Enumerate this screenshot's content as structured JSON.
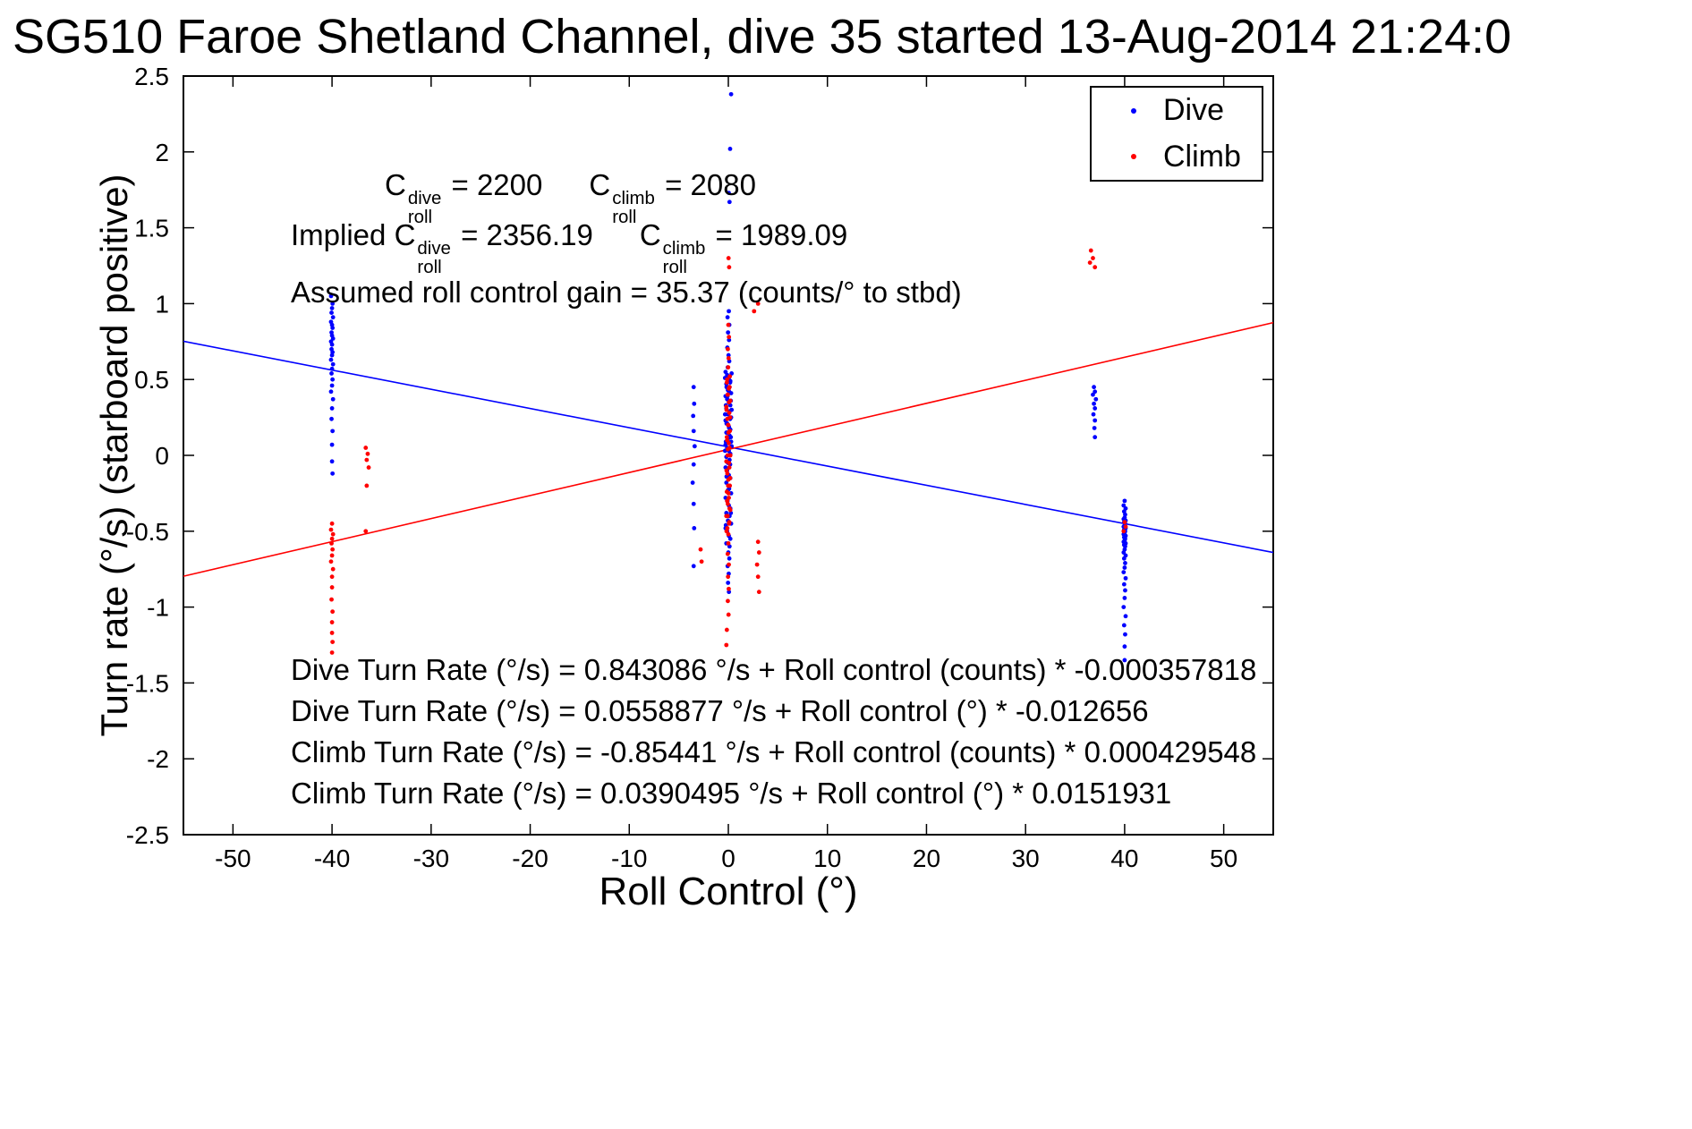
{
  "chart_data": {
    "type": "scatter",
    "title": "SG510 Faroe Shetland Channel, dive 35 started 13-Aug-2014 21:24:0",
    "xlabel": "Roll Control (°)",
    "ylabel": "Turn rate (°/s) (starboard positive)",
    "xlim": [
      -55,
      55
    ],
    "ylim": [
      -2.5,
      2.5
    ],
    "xticks": [
      -50,
      -40,
      -30,
      -20,
      -10,
      0,
      10,
      20,
      30,
      40,
      50
    ],
    "yticks": [
      -2.5,
      -2,
      -1.5,
      -1,
      -0.5,
      0,
      0.5,
      1,
      1.5,
      2,
      2.5
    ],
    "grid": false,
    "legend_position": "top-right",
    "fit_lines": [
      {
        "name": "dive-fit",
        "color": "#0000ff",
        "intercept": 0.0558877,
        "slope": -0.012656
      },
      {
        "name": "climb-fit",
        "color": "#ff0000",
        "intercept": 0.0390495,
        "slope": 0.0151931
      }
    ],
    "series": [
      {
        "name": "Dive",
        "color": "#0000ff",
        "marker": "point",
        "points": [
          [
            -40.1,
            1.05
          ],
          [
            -39.95,
            1.0
          ],
          [
            -40.0,
            0.97
          ],
          [
            -40.05,
            0.94
          ],
          [
            -39.9,
            0.91
          ],
          [
            -40.1,
            0.88
          ],
          [
            -40.0,
            0.86
          ],
          [
            -39.95,
            0.84
          ],
          [
            -40.05,
            0.81
          ],
          [
            -40.0,
            0.79
          ],
          [
            -39.9,
            0.77
          ],
          [
            -40.1,
            0.75
          ],
          [
            -40.0,
            0.73
          ],
          [
            -40.05,
            0.7
          ],
          [
            -39.95,
            0.68
          ],
          [
            -40.0,
            0.66
          ],
          [
            -40.1,
            0.63
          ],
          [
            -39.9,
            0.6
          ],
          [
            -40.0,
            0.57
          ],
          [
            -40.05,
            0.54
          ],
          [
            -39.95,
            0.5
          ],
          [
            -40.0,
            0.46
          ],
          [
            -40.1,
            0.42
          ],
          [
            -39.9,
            0.37
          ],
          [
            -40.0,
            0.31
          ],
          [
            -40.05,
            0.24
          ],
          [
            -39.95,
            0.16
          ],
          [
            -40.0,
            0.07
          ],
          [
            -40.0,
            -0.04
          ],
          [
            -39.95,
            -0.12
          ],
          [
            -3.5,
            0.45
          ],
          [
            -3.45,
            0.34
          ],
          [
            -3.55,
            0.26
          ],
          [
            -3.5,
            0.16
          ],
          [
            -3.4,
            0.06
          ],
          [
            -3.5,
            -0.06
          ],
          [
            -3.6,
            -0.18
          ],
          [
            -3.5,
            -0.32
          ],
          [
            -3.45,
            -0.48
          ],
          [
            -3.5,
            -0.73
          ],
          [
            0.28,
            2.38
          ],
          [
            0.18,
            2.02
          ],
          [
            0.04,
            1.73
          ],
          [
            0.12,
            1.67
          ],
          [
            0.05,
            0.95
          ],
          [
            -0.08,
            0.91
          ],
          [
            0.1,
            0.86
          ],
          [
            -0.03,
            0.81
          ],
          [
            0.07,
            0.76
          ],
          [
            -0.1,
            0.71
          ],
          [
            0.02,
            0.66
          ],
          [
            0.09,
            0.62
          ],
          [
            -0.06,
            0.58
          ],
          [
            -0.28,
            0.55
          ],
          [
            -0.12,
            0.53
          ],
          [
            0.05,
            0.51
          ],
          [
            0.2,
            0.49
          ],
          [
            -0.2,
            0.47
          ],
          [
            0.12,
            0.45
          ],
          [
            -0.04,
            0.43
          ],
          [
            0.28,
            0.41
          ],
          [
            -0.28,
            0.39
          ],
          [
            -0.12,
            0.37
          ],
          [
            0.05,
            0.35
          ],
          [
            0.2,
            0.33
          ],
          [
            -0.2,
            0.31
          ],
          [
            0.12,
            0.29
          ],
          [
            -0.04,
            0.27
          ],
          [
            0.28,
            0.25
          ],
          [
            -0.28,
            0.23
          ],
          [
            -0.12,
            0.21
          ],
          [
            0.05,
            0.19
          ],
          [
            0.2,
            0.17
          ],
          [
            -0.2,
            0.15
          ],
          [
            0.12,
            0.13
          ],
          [
            -0.04,
            0.11
          ],
          [
            0.28,
            0.09
          ],
          [
            -0.28,
            0.07
          ],
          [
            -0.12,
            0.05
          ],
          [
            0.05,
            0.03
          ],
          [
            0.2,
            0.01
          ],
          [
            -0.2,
            -0.01
          ],
          [
            0.12,
            -0.03
          ],
          [
            -0.04,
            -0.05
          ],
          [
            0.33,
            0.54
          ],
          [
            -0.33,
            0.51
          ],
          [
            0.18,
            0.48
          ],
          [
            -0.18,
            0.45
          ],
          [
            0.08,
            0.42
          ],
          [
            -0.08,
            0.39
          ],
          [
            0.25,
            0.36
          ],
          [
            -0.25,
            0.33
          ],
          [
            0.33,
            0.3
          ],
          [
            -0.33,
            0.27
          ],
          [
            0.18,
            0.24
          ],
          [
            -0.18,
            0.21
          ],
          [
            0.08,
            0.18
          ],
          [
            -0.08,
            0.15
          ],
          [
            0.25,
            0.12
          ],
          [
            -0.25,
            0.09
          ],
          [
            0.33,
            0.06
          ],
          [
            -0.33,
            0.03
          ],
          [
            0.18,
            0.0
          ],
          [
            -0.28,
            -0.08
          ],
          [
            -0.12,
            -0.1
          ],
          [
            0.05,
            -0.13
          ],
          [
            0.2,
            -0.15
          ],
          [
            -0.2,
            -0.18
          ],
          [
            0.12,
            -0.2
          ],
          [
            -0.04,
            -0.23
          ],
          [
            0.28,
            -0.25
          ],
          [
            -0.28,
            -0.28
          ],
          [
            -0.12,
            -0.3
          ],
          [
            0.05,
            -0.33
          ],
          [
            0.2,
            -0.35
          ],
          [
            -0.2,
            -0.38
          ],
          [
            0.12,
            -0.4
          ],
          [
            -0.04,
            -0.43
          ],
          [
            0.28,
            -0.45
          ],
          [
            -0.28,
            -0.48
          ],
          [
            -0.12,
            -0.5
          ],
          [
            0.05,
            -0.53
          ],
          [
            0.2,
            -0.55
          ],
          [
            -0.2,
            -0.58
          ],
          [
            0.12,
            -0.6
          ],
          [
            0.18,
            -0.06
          ],
          [
            -0.18,
            -0.14
          ],
          [
            0.08,
            -0.22
          ],
          [
            -0.08,
            -0.3
          ],
          [
            0.25,
            -0.38
          ],
          [
            -0.25,
            -0.46
          ],
          [
            0.0,
            -0.64
          ],
          [
            0.1,
            -0.68
          ],
          [
            -0.07,
            -0.73
          ],
          [
            0.04,
            -0.78
          ],
          [
            -0.03,
            -0.84
          ],
          [
            0.06,
            -0.9
          ],
          [
            36.9,
            0.45
          ],
          [
            37.0,
            0.42
          ],
          [
            36.8,
            0.4
          ],
          [
            37.1,
            0.37
          ],
          [
            36.9,
            0.34
          ],
          [
            37.0,
            0.31
          ],
          [
            36.85,
            0.27
          ],
          [
            37.0,
            0.23
          ],
          [
            36.95,
            0.18
          ],
          [
            37.0,
            0.12
          ],
          [
            40.0,
            -0.3
          ],
          [
            39.9,
            -0.33
          ],
          [
            40.1,
            -0.35
          ],
          [
            39.95,
            -0.37
          ],
          [
            40.05,
            -0.39
          ],
          [
            40.0,
            -0.41
          ],
          [
            39.9,
            -0.42
          ],
          [
            40.1,
            -0.43
          ],
          [
            39.95,
            -0.44
          ],
          [
            40.05,
            -0.45
          ],
          [
            40.0,
            -0.46
          ],
          [
            39.9,
            -0.47
          ],
          [
            40.1,
            -0.48
          ],
          [
            39.95,
            -0.49
          ],
          [
            40.05,
            -0.5
          ],
          [
            40.0,
            -0.51
          ],
          [
            39.9,
            -0.52
          ],
          [
            40.1,
            -0.53
          ],
          [
            39.95,
            -0.54
          ],
          [
            40.05,
            -0.55
          ],
          [
            40.0,
            -0.56
          ],
          [
            39.9,
            -0.57
          ],
          [
            40.1,
            -0.58
          ],
          [
            39.95,
            -0.59
          ],
          [
            40.05,
            -0.6
          ],
          [
            40.0,
            -0.62
          ],
          [
            39.9,
            -0.64
          ],
          [
            40.1,
            -0.66
          ],
          [
            39.95,
            -0.68
          ],
          [
            40.05,
            -0.71
          ],
          [
            40.0,
            -0.74
          ],
          [
            39.9,
            -0.77
          ],
          [
            40.1,
            -0.81
          ],
          [
            39.95,
            -0.85
          ],
          [
            40.05,
            -0.89
          ],
          [
            40.0,
            -0.94
          ],
          [
            39.9,
            -1.0
          ],
          [
            40.1,
            -1.06
          ],
          [
            39.95,
            -1.12
          ],
          [
            40.05,
            -1.18
          ],
          [
            40.0,
            -1.26
          ],
          [
            40.0,
            -1.35
          ]
        ]
      },
      {
        "name": "Climb",
        "color": "#ff0000",
        "marker": "point",
        "points": [
          [
            -40.0,
            -0.45
          ],
          [
            -40.1,
            -0.49
          ],
          [
            -39.9,
            -0.52
          ],
          [
            -40.0,
            -0.55
          ],
          [
            -40.05,
            -0.58
          ],
          [
            -39.95,
            -0.62
          ],
          [
            -40.0,
            -0.66
          ],
          [
            -40.1,
            -0.7
          ],
          [
            -39.9,
            -0.75
          ],
          [
            -40.0,
            -0.8
          ],
          [
            -40.0,
            -0.87
          ],
          [
            -40.05,
            -0.95
          ],
          [
            -39.95,
            -1.03
          ],
          [
            -40.0,
            -1.1
          ],
          [
            -40.0,
            -1.17
          ],
          [
            -39.95,
            -1.23
          ],
          [
            -40.0,
            -1.3
          ],
          [
            -36.6,
            0.05
          ],
          [
            -36.4,
            0.01
          ],
          [
            -36.5,
            -0.03
          ],
          [
            -36.3,
            -0.08
          ],
          [
            -36.5,
            -0.2
          ],
          [
            -36.6,
            -0.5
          ],
          [
            -2.8,
            -0.62
          ],
          [
            -2.7,
            -0.7
          ],
          [
            0.02,
            1.3
          ],
          [
            0.08,
            1.24
          ],
          [
            0.0,
            0.86
          ],
          [
            0.06,
            0.78
          ],
          [
            -0.05,
            0.7
          ],
          [
            0.03,
            0.64
          ],
          [
            -0.02,
            0.58
          ],
          [
            0.15,
            0.52
          ],
          [
            -0.15,
            0.48
          ],
          [
            0.05,
            0.44
          ],
          [
            -0.05,
            0.4
          ],
          [
            0.2,
            0.36
          ],
          [
            -0.2,
            0.32
          ],
          [
            0.1,
            0.28
          ],
          [
            -0.1,
            0.24
          ],
          [
            0.0,
            0.2
          ],
          [
            0.15,
            0.16
          ],
          [
            -0.15,
            0.12
          ],
          [
            0.05,
            0.08
          ],
          [
            -0.05,
            0.04
          ],
          [
            0.2,
            0.0
          ],
          [
            -0.2,
            -0.04
          ],
          [
            0.1,
            -0.08
          ],
          [
            -0.1,
            -0.12
          ],
          [
            0.0,
            -0.16
          ],
          [
            0.15,
            -0.2
          ],
          [
            -0.15,
            -0.24
          ],
          [
            0.05,
            -0.28
          ],
          [
            -0.05,
            -0.32
          ],
          [
            0.2,
            -0.36
          ],
          [
            -0.2,
            -0.4
          ],
          [
            0.1,
            -0.44
          ],
          [
            -0.1,
            -0.48
          ],
          [
            0.0,
            -0.52
          ],
          [
            -0.12,
            0.5
          ],
          [
            0.12,
            0.45
          ],
          [
            -0.07,
            0.4
          ],
          [
            0.07,
            0.35
          ],
          [
            -0.18,
            0.3
          ],
          [
            0.18,
            0.25
          ],
          [
            -0.02,
            0.2
          ],
          [
            0.02,
            0.15
          ],
          [
            -0.12,
            0.1
          ],
          [
            0.12,
            0.05
          ],
          [
            -0.07,
            0.0
          ],
          [
            0.07,
            -0.05
          ],
          [
            -0.18,
            -0.1
          ],
          [
            0.18,
            -0.15
          ],
          [
            -0.02,
            -0.2
          ],
          [
            0.02,
            -0.25
          ],
          [
            -0.12,
            -0.3
          ],
          [
            0.12,
            -0.35
          ],
          [
            -0.07,
            -0.4
          ],
          [
            0.07,
            -0.45
          ],
          [
            -0.18,
            -0.5
          ],
          [
            0.0,
            -0.58
          ],
          [
            -0.06,
            -0.65
          ],
          [
            0.05,
            -0.72
          ],
          [
            -0.03,
            -0.8
          ],
          [
            0.04,
            -0.88
          ],
          [
            -0.05,
            -0.96
          ],
          [
            0.02,
            -1.05
          ],
          [
            -0.15,
            -1.15
          ],
          [
            -0.2,
            -1.25
          ],
          [
            3.0,
            1.0
          ],
          [
            2.6,
            0.95
          ],
          [
            3.0,
            -0.57
          ],
          [
            3.1,
            -0.64
          ],
          [
            2.9,
            -0.72
          ],
          [
            3.0,
            -0.8
          ],
          [
            3.1,
            -0.9
          ],
          [
            36.6,
            1.35
          ],
          [
            36.8,
            1.3
          ],
          [
            36.5,
            1.27
          ],
          [
            37.0,
            1.24
          ],
          [
            40.0,
            -0.44
          ],
          [
            40.1,
            -0.47
          ],
          [
            39.9,
            -0.5
          ]
        ]
      }
    ]
  },
  "annotations": {
    "croll": {
      "c": "C",
      "dive_sup": "dive",
      "roll_sub": "roll",
      "dive_eq": " = 2200",
      "c2": "C",
      "climb_sup": "climb",
      "roll_sub2": "roll",
      "climb_eq": " = 2080"
    },
    "implied": {
      "prefix": "Implied ",
      "c": "C",
      "dive_sup": "dive",
      "roll_sub": "roll",
      "dive_eq": " = 2356.19",
      "c2": "C",
      "climb_sup": "climb",
      "roll_sub2": "roll",
      "climb_eq": " = 1989.09"
    },
    "gain": "Assumed roll control gain = 35.37 (counts/° to stbd)",
    "fits": [
      "Dive Turn Rate (°/s) = 0.843086 °/s + Roll control (counts) * -0.000357818",
      "Dive Turn Rate (°/s) = 0.0558877 °/s + Roll control (°) * -0.012656",
      "Climb Turn Rate (°/s) = -0.85441 °/s + Roll control (counts) * 0.000429548",
      "Climb Turn Rate (°/s) = 0.0390495 °/s + Roll control (°) * 0.0151931"
    ]
  }
}
